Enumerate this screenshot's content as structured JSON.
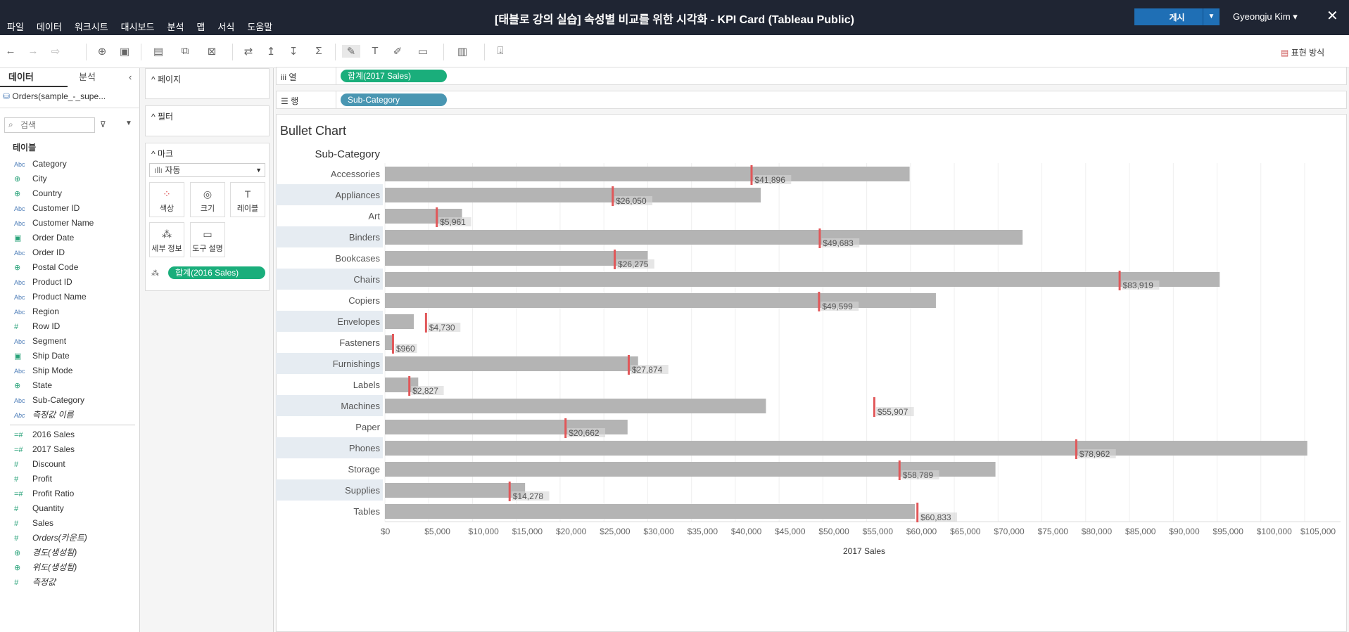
{
  "menu": [
    "파일",
    "데이터",
    "워크시트",
    "대시보드",
    "분석",
    "맵",
    "서식",
    "도움말"
  ],
  "window_title": "[태블로 강의 실습] 속성별 비교를 위한 시각화 - KPI Card (Tableau Public)",
  "publish_label": "게시",
  "user_name": "Gyeongju Kim",
  "show_me_label": "표현 방식",
  "panel": {
    "tab_data": "데이터",
    "tab_analysis": "분석",
    "datasource": "Orders(sample_-_supe...",
    "search_placeholder": "검색",
    "tables_label": "테이블"
  },
  "fields": [
    {
      "type": "Abc",
      "name": "Category"
    },
    {
      "type": "geo",
      "name": "City"
    },
    {
      "type": "geo",
      "name": "Country"
    },
    {
      "type": "Abc",
      "name": "Customer ID"
    },
    {
      "type": "Abc",
      "name": "Customer Name"
    },
    {
      "type": "date",
      "name": "Order Date"
    },
    {
      "type": "Abc",
      "name": "Order ID"
    },
    {
      "type": "geo",
      "name": "Postal Code"
    },
    {
      "type": "Abc",
      "name": "Product ID"
    },
    {
      "type": "Abc",
      "name": "Product Name"
    },
    {
      "type": "Abc",
      "name": "Region"
    },
    {
      "type": "#",
      "name": "Row ID"
    },
    {
      "type": "Abc",
      "name": "Segment"
    },
    {
      "type": "date",
      "name": "Ship Date"
    },
    {
      "type": "Abc",
      "name": "Ship Mode"
    },
    {
      "type": "geo",
      "name": "State"
    },
    {
      "type": "Abc",
      "name": "Sub-Category"
    },
    {
      "type": "Abc",
      "name": "측정값 이름",
      "italic": true
    }
  ],
  "measures": [
    {
      "type": "calc",
      "name": "2016 Sales"
    },
    {
      "type": "calc",
      "name": "2017 Sales"
    },
    {
      "type": "#",
      "name": "Discount"
    },
    {
      "type": "#",
      "name": "Profit"
    },
    {
      "type": "calc",
      "name": "Profit Ratio"
    },
    {
      "type": "#",
      "name": "Quantity"
    },
    {
      "type": "#",
      "name": "Sales"
    },
    {
      "type": "#",
      "name": "Orders(카운트)",
      "italic": true
    },
    {
      "type": "geo",
      "name": "경도(생성됨)",
      "italic": true
    },
    {
      "type": "geo",
      "name": "위도(생성됨)",
      "italic": true
    },
    {
      "type": "#",
      "name": "측정값",
      "italic": true
    }
  ],
  "cards": {
    "pages": "페이지",
    "filters": "필터",
    "marks": "마크",
    "mark_type": "자동",
    "color": "색상",
    "size": "크기",
    "label": "레이블",
    "detail": "세부 정보",
    "tooltip": "도구 설명",
    "mark_pill": "합계(2016 Sales)"
  },
  "shelves": {
    "columns_label": "열",
    "rows_label": "행",
    "columns_pill": "합계(2017 Sales)",
    "rows_pill": "Sub-Category"
  },
  "chart_data": {
    "type": "bar",
    "title": "Bullet Chart",
    "row_header": "Sub-Category",
    "xlabel": "2017 Sales",
    "xlim": [
      0,
      110000
    ],
    "ticks": [
      "$0",
      "$5,000",
      "$10,000",
      "$15,000",
      "$20,000",
      "$25,000",
      "$30,000",
      "$35,000",
      "$40,000",
      "$45,000",
      "$50,000",
      "$55,000",
      "$60,000",
      "$65,000",
      "$70,000",
      "$75,000",
      "$80,000",
      "$85,000",
      "$90,000",
      "$95,000",
      "$100,000",
      "$105,000"
    ],
    "categories": [
      "Accessories",
      "Appliances",
      "Art",
      "Binders",
      "Bookcases",
      "Chairs",
      "Copiers",
      "Envelopes",
      "Fasteners",
      "Furnishings",
      "Labels",
      "Machines",
      "Paper",
      "Phones",
      "Storage",
      "Supplies",
      "Tables"
    ],
    "series": [
      {
        "name": "2017 Sales",
        "values": [
          59900,
          42900,
          8800,
          72800,
          30000,
          95300,
          62900,
          3300,
          950,
          28900,
          3800,
          43500,
          27700,
          105300,
          69700,
          16000,
          60500
        ]
      },
      {
        "name": "2016 Sales",
        "values": [
          41896,
          26050,
          5961,
          49683,
          26275,
          83919,
          49599,
          4730,
          960,
          27874,
          2827,
          55907,
          20662,
          78962,
          58789,
          14278,
          60833
        ]
      }
    ],
    "reference_labels": [
      "$41,896",
      "$26,050",
      "$5,961",
      "$49,683",
      "$26,275",
      "$83,919",
      "$49,599",
      "$4,730",
      "$960",
      "$27,874",
      "$2,827",
      "$55,907",
      "$20,662",
      "$78,962",
      "$58,789",
      "$14,278",
      "$60,833"
    ],
    "bar_color": "#b4b4b4",
    "reference_color": "#e15759",
    "band_color": "#e6ecf2"
  }
}
